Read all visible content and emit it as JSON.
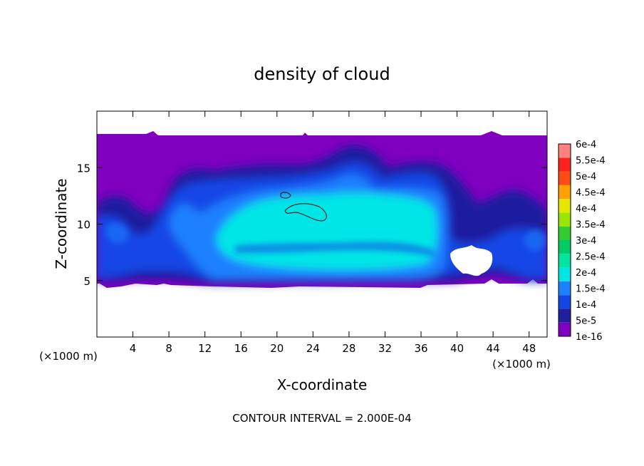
{
  "chart_data": {
    "type": "heatmap",
    "title": "density of cloud",
    "xlabel": "X-coordinate",
    "ylabel": "Z-coordinate",
    "x_unit": "(×1000 m)",
    "y_unit": "(×1000 m)",
    "xlim": [
      0,
      50
    ],
    "ylim": [
      0,
      20
    ],
    "x_ticks": [
      4,
      8,
      12,
      16,
      20,
      24,
      28,
      32,
      36,
      40,
      44,
      48
    ],
    "y_ticks": [
      5,
      10,
      15
    ],
    "footer": "CONTOUR INTERVAL = 2.000E-04",
    "colorbar": {
      "labels": [
        "1e-16",
        "5e-5",
        "1e-4",
        "1.5e-4",
        "2e-4",
        "2.5e-4",
        "3e-4",
        "3.5e-4",
        "4e-4",
        "4.5e-4",
        "5e-4",
        "5.5e-4",
        "6e-4"
      ],
      "values": [
        1e-16,
        5e-05,
        0.0001,
        0.00015,
        0.0002,
        0.00025,
        0.0003,
        0.00035,
        0.0004,
        0.00045,
        0.0005,
        0.00055,
        0.0006
      ],
      "colors": [
        "#7f00bf",
        "#1f1fa0",
        "#1446e6",
        "#1e80ff",
        "#00e6e6",
        "#00e6a0",
        "#00cc66",
        "#33cc33",
        "#99e600",
        "#e6e600",
        "#ffa000",
        "#ff4a14",
        "#ff2020",
        "#ff8080"
      ]
    },
    "regions": [
      {
        "description": "cloud layer (background density)",
        "level": 0,
        "x": [
          0,
          50
        ],
        "z": [
          4.6,
          17.8
        ]
      },
      {
        "description": "upper dome",
        "level": 2,
        "x": [
          22,
          30
        ],
        "z": [
          10,
          16.5
        ]
      },
      {
        "description": "main core",
        "level": 3,
        "x": [
          13,
          37
        ],
        "z": [
          5.5,
          13.5
        ]
      },
      {
        "description": "densest core",
        "level": 4,
        "x": [
          16,
          35
        ],
        "z": [
          6,
          13
        ]
      }
    ],
    "contours": [
      {
        "level": 0.0002,
        "x": [
          20.5,
          22
        ],
        "z": [
          12.1,
          12.8
        ]
      },
      {
        "level": 0.0002,
        "x": [
          21,
          25.5
        ],
        "z": [
          10.4,
          11.9
        ]
      }
    ]
  }
}
